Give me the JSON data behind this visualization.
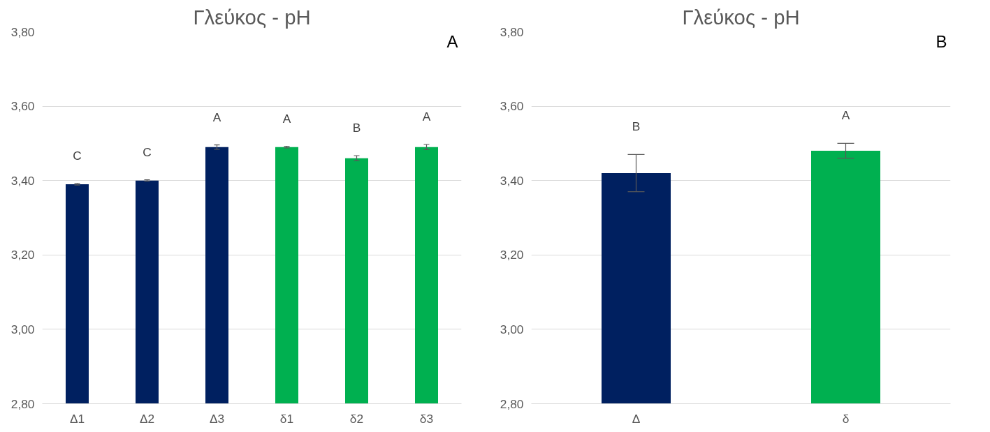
{
  "chart_data": [
    {
      "type": "bar",
      "title": "Γλεύκος - pH",
      "categories": [
        "Δ1",
        "Δ2",
        "Δ3",
        "δ1",
        "δ2",
        "δ3"
      ],
      "values": [
        3.39,
        3.4,
        3.49,
        3.49,
        3.46,
        3.49
      ],
      "errors": [
        0.002,
        0.002,
        0.006,
        0.002,
        0.007,
        0.007
      ],
      "colors": [
        "#002060",
        "#002060",
        "#002060",
        "#00b050",
        "#00b050",
        "#00b050"
      ],
      "ylim": [
        2.8,
        3.8
      ],
      "yticks": [
        {
          "value": 2.8,
          "label": "2,80"
        },
        {
          "value": 3.0,
          "label": "3,00"
        },
        {
          "value": 3.2,
          "label": "3,20"
        },
        {
          "value": 3.4,
          "label": "3,40"
        },
        {
          "value": 3.6,
          "label": "3,60"
        },
        {
          "value": 3.8,
          "label": "3,80"
        }
      ],
      "grid": "y",
      "annotations": [
        "A",
        "C",
        "C",
        "A",
        "A",
        "B",
        "A"
      ]
    },
    {
      "type": "bar",
      "title": "Γλεύκος - pH",
      "categories": [
        "Δ",
        "δ"
      ],
      "values": [
        3.42,
        3.48
      ],
      "errors": [
        0.05,
        0.02
      ],
      "colors": [
        "#002060",
        "#00b050"
      ],
      "ylim": [
        2.8,
        3.8
      ],
      "yticks": [
        {
          "value": 2.8,
          "label": "2,80"
        },
        {
          "value": 3.0,
          "label": "3,00"
        },
        {
          "value": 3.2,
          "label": "3,20"
        },
        {
          "value": 3.4,
          "label": "3,40"
        },
        {
          "value": 3.6,
          "label": "3,60"
        },
        {
          "value": 3.8,
          "label": "3,80"
        }
      ],
      "grid": "y",
      "annotations": [
        "B",
        "B",
        "A"
      ]
    }
  ]
}
